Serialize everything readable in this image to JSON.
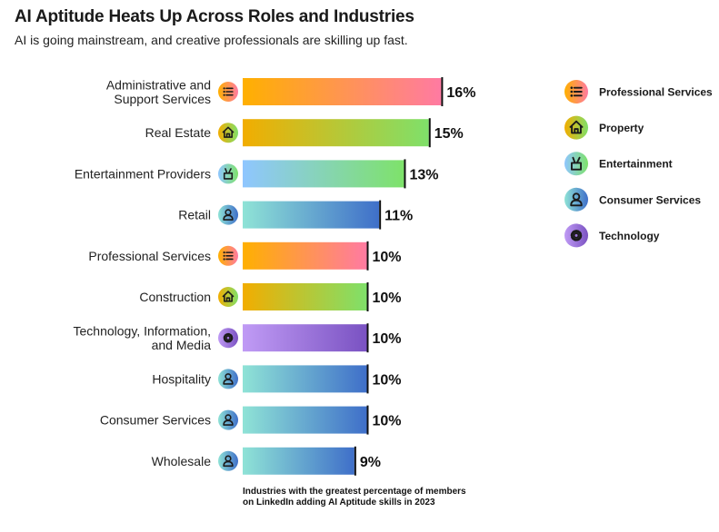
{
  "header": {
    "title": "AI Aptitude Heats Up Across Roles and Industries",
    "subtitle": "AI is going mainstream, and creative professionals are skilling up fast."
  },
  "caption": {
    "line1": "Industries with the greatest percentage of members",
    "line2": "on LinkedIn adding AI Aptitude skills in 2023"
  },
  "legend": [
    {
      "key": "professional",
      "label": "Professional Services",
      "icon": "list-icon"
    },
    {
      "key": "property",
      "label": "Property",
      "icon": "house-icon"
    },
    {
      "key": "entertainment",
      "label": "Entertainment",
      "icon": "hand-icon"
    },
    {
      "key": "consumer",
      "label": "Consumer Services",
      "icon": "person-icon"
    },
    {
      "key": "technology",
      "label": "Technology",
      "icon": "gear-icon"
    }
  ],
  "colors": {
    "professional": [
      "#ffb000",
      "#ff7aa2"
    ],
    "property": [
      "#f2ad00",
      "#7fe06a"
    ],
    "entertainment": [
      "#8fc6ff",
      "#7ee26a"
    ],
    "consumer": [
      "#8fe3d6",
      "#3f6fc9"
    ],
    "technology": [
      "#c09bf5",
      "#7a52c2"
    ]
  },
  "chart_data": {
    "type": "bar",
    "orientation": "horizontal",
    "title": "AI Aptitude Heats Up Across Roles and Industries",
    "subtitle": "AI is going mainstream, and creative professionals are skilling up fast.",
    "unit": "%",
    "xlim": [
      0,
      16
    ],
    "grid": false,
    "legend_position": "right",
    "categories": [
      "Administrative and Support Services",
      "Real Estate",
      "Entertainment Providers",
      "Retail",
      "Professional Services",
      "Construction",
      "Technology, Information, and Media",
      "Hospitality",
      "Consumer Services",
      "Wholesale"
    ],
    "label_lines": [
      [
        "Administrative and",
        "Support Services"
      ],
      [
        "Real Estate"
      ],
      [
        "Entertainment Providers"
      ],
      [
        "Retail"
      ],
      [
        "Professional Services"
      ],
      [
        "Construction"
      ],
      [
        "Technology, Information,",
        "and Media"
      ],
      [
        "Hospitality"
      ],
      [
        "Consumer Services"
      ],
      [
        "Wholesale"
      ]
    ],
    "groups": [
      "professional",
      "property",
      "entertainment",
      "consumer",
      "professional",
      "property",
      "technology",
      "consumer",
      "consumer",
      "consumer"
    ],
    "values": [
      16,
      15,
      13,
      11,
      10,
      10,
      10,
      10,
      10,
      9
    ],
    "value_labels": [
      "16%",
      "15%",
      "13%",
      "11%",
      "10%",
      "10%",
      "10%",
      "10%",
      "10%",
      "9%"
    ]
  }
}
